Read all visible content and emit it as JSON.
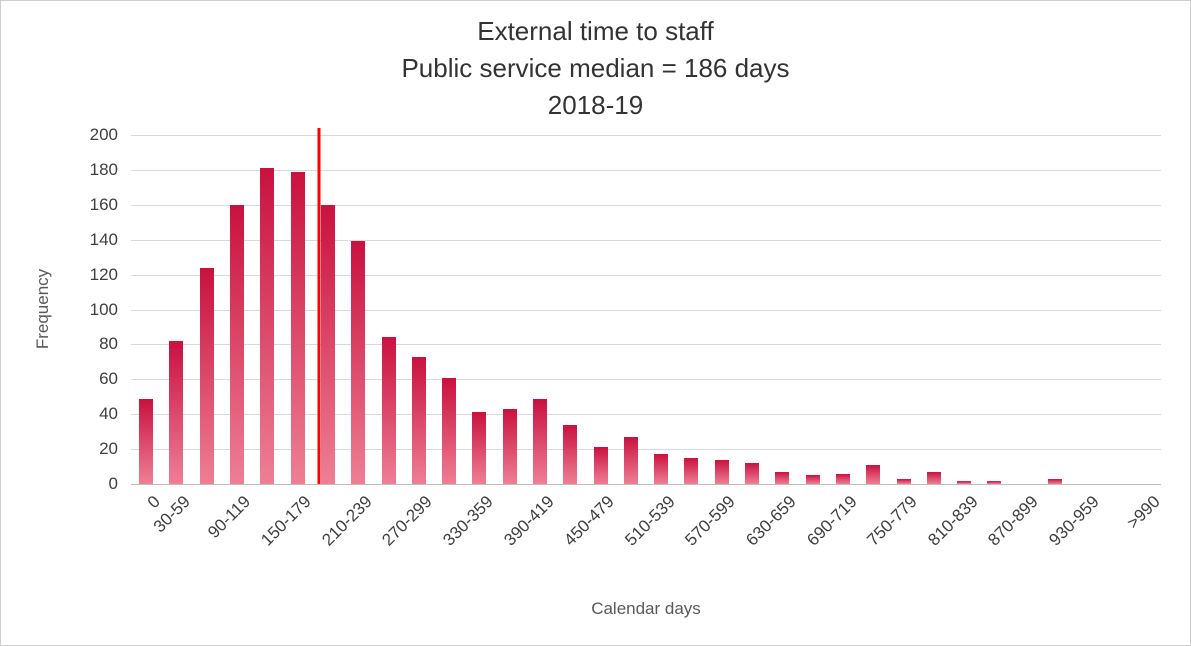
{
  "chart_data": {
    "type": "bar",
    "title_lines": [
      "External time to staff",
      "Public service median = 186 days",
      "2018-19"
    ],
    "xlabel": "Calendar days",
    "ylabel": "Frequency",
    "ylim": [
      0,
      200
    ],
    "y_ticks": [
      0,
      20,
      40,
      60,
      80,
      100,
      120,
      140,
      160,
      180,
      200
    ],
    "bin_count": 34,
    "bin_width_days": 30,
    "categories": [
      "0",
      "30-59",
      "",
      "90-119",
      "",
      "150-179",
      "",
      "210-239",
      "",
      "270-299",
      "",
      "330-359",
      "",
      "390-419",
      "",
      "450-479",
      "",
      "510-539",
      "",
      "570-599",
      "",
      "630-659",
      "",
      "690-719",
      "",
      "750-779",
      "",
      "810-839",
      "",
      "870-899",
      "",
      "930-959",
      "",
      ">990"
    ],
    "values": [
      49,
      82,
      124,
      160,
      181,
      179,
      160,
      139,
      84,
      73,
      61,
      41,
      43,
      49,
      34,
      21,
      27,
      17,
      15,
      14,
      12,
      7,
      5,
      6,
      11,
      3,
      7,
      2,
      2,
      0,
      3,
      0,
      0,
      0
    ],
    "median_days": 186,
    "median_line_color": "#ff0000",
    "bar_color_top": "#c9113f",
    "bar_color_bottom": "#ee7f95",
    "gridline_color": "#d9d9d9",
    "axis_line_color": "#bfbfbf",
    "grid": "horizontal",
    "legend": "off"
  }
}
